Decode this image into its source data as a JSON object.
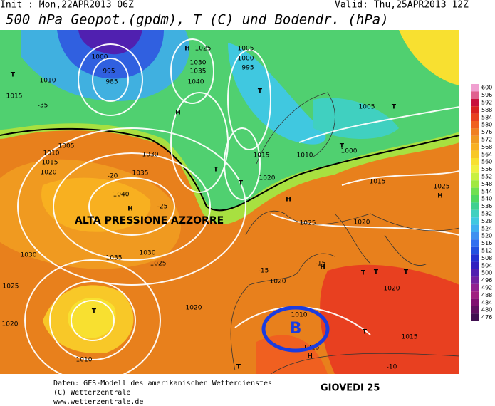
{
  "header": {
    "init": "Init : Mon,22APR2013 06Z",
    "valid": "Valid: Thu,25APR2013 12Z",
    "title": "500 hPa Geopot.(gpdm), T (C) und Bodendr. (hPa)"
  },
  "map": {
    "annotation": "ALTA PRESSIONE AZZORRE",
    "marker": "B",
    "labels": [
      "H",
      "1025",
      "1005",
      "1000",
      "995",
      "1030",
      "1035",
      "1040",
      "H",
      "T",
      "T",
      "1015",
      "1005",
      "1010",
      "1015",
      "1020",
      "1030",
      "1035",
      "1040",
      "H",
      "1035",
      "1030",
      "1025",
      "1030",
      "1025",
      "1020",
      "1010",
      "T",
      "1020",
      "T",
      "T",
      "1020",
      "1015",
      "1010",
      "T",
      "1000",
      "1005",
      "T",
      "1015",
      "1025",
      "H",
      "1020",
      "H",
      "T",
      "T",
      "T",
      "1020",
      "1015",
      "T",
      "1010",
      "1020",
      "1015",
      "H",
      "T",
      "1025",
      "H",
      "-35",
      "-20",
      "-25",
      "-15",
      "-15",
      "-10",
      "1000",
      "995",
      "985",
      "1010"
    ]
  },
  "colorbar": {
    "values": [
      600,
      596,
      592,
      588,
      584,
      580,
      576,
      572,
      568,
      564,
      560,
      556,
      552,
      548,
      544,
      540,
      536,
      532,
      528,
      524,
      520,
      516,
      512,
      508,
      504,
      500,
      496,
      492,
      488,
      484,
      480,
      476
    ],
    "colors": [
      "#f0a0d0",
      "#e0608f",
      "#c8103c",
      "#d82020",
      "#e84020",
      "#f06020",
      "#f08020",
      "#f09a20",
      "#f8b020",
      "#f8c828",
      "#f8e030",
      "#f0f040",
      "#c8f040",
      "#a0e840",
      "#70e050",
      "#50d860",
      "#40d090",
      "#40d0c0",
      "#40c8e0",
      "#40b0f0",
      "#4090f0",
      "#3070f0",
      "#2050e0",
      "#2030d0",
      "#3020c0",
      "#5020b0",
      "#7020a0",
      "#902090",
      "#a02080",
      "#801070",
      "#601060",
      "#401050"
    ]
  },
  "footer": {
    "lines": [
      "Daten: GFS-Modell des amerikanischen Wetterdienstes",
      "(C) Wetterzentrale",
      "www.wetterzentrale.de"
    ],
    "day": "GIOVEDI 25"
  }
}
